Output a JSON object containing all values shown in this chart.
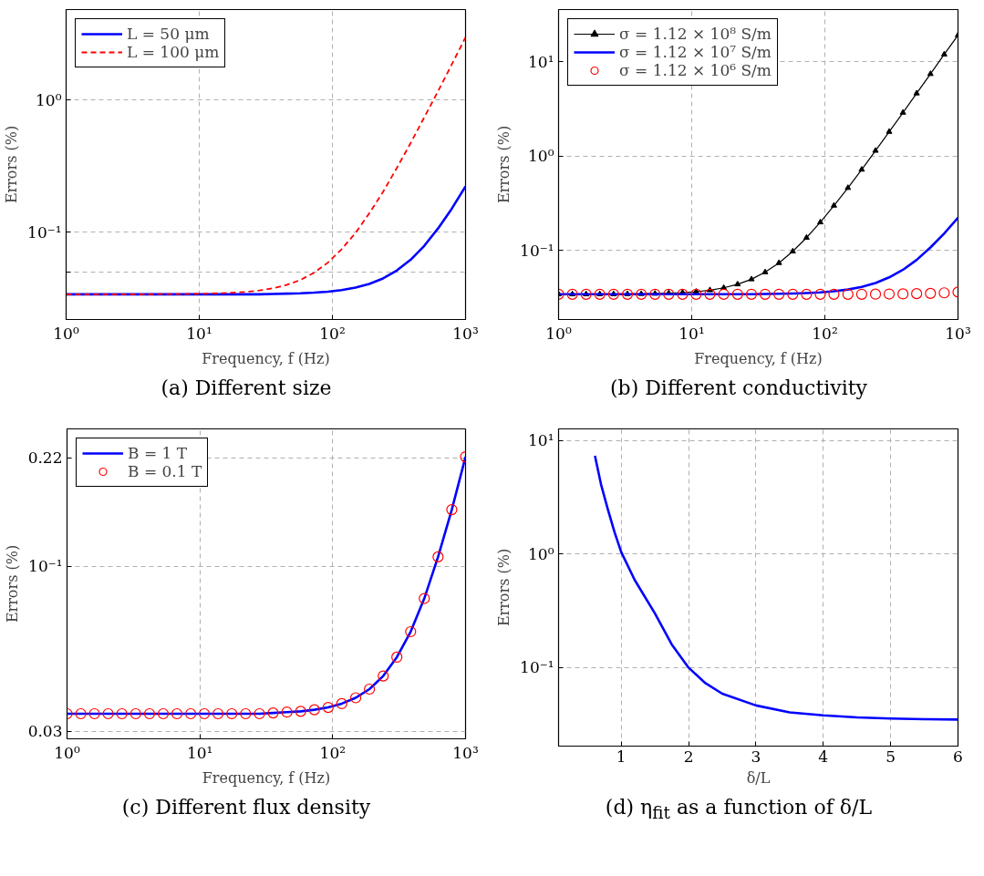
{
  "chart_data": [
    {
      "type": "line",
      "annotations": [
        "(a) Different size"
      ],
      "xlabel": "Frequency, f (Hz)",
      "ylabel": "Errors (%)",
      "log": "xy",
      "grid": true,
      "legend": "top left",
      "xlim": [
        1,
        1000
      ],
      "xticks": [
        {
          "value": 1,
          "label": "10⁰"
        },
        {
          "value": 10,
          "label": "10¹"
        },
        {
          "value": 100,
          "label": "10²"
        },
        {
          "value": 1000,
          "label": "10³"
        }
      ],
      "ylim": [
        0.022,
        4.8
      ],
      "yticks": [
        {
          "value": 0.05,
          "label": null
        },
        {
          "value": 0.1,
          "label": "10⁻¹"
        },
        {
          "value": 1,
          "label": "10⁰"
        }
      ],
      "x": [
        1,
        1.27,
        1.61,
        2.04,
        2.59,
        3.29,
        4.18,
        5.3,
        6.72,
        8.53,
        10.8,
        13.7,
        17.4,
        22.1,
        28.1,
        35.6,
        45.2,
        57.4,
        72.8,
        92.4,
        117,
        149,
        189,
        240,
        304,
        386,
        489,
        621,
        788,
        1000
      ],
      "series": [
        {
          "name": "L = 50 μm",
          "color": "#0000ff",
          "line_style": "solid",
          "values": [
            0.0341,
            0.0341,
            0.0341,
            0.0341,
            0.0341,
            0.0341,
            0.0341,
            0.0341,
            0.0341,
            0.0341,
            0.0341,
            0.0341,
            0.0341,
            0.0341,
            0.0341,
            0.0343,
            0.0345,
            0.0347,
            0.0351,
            0.0357,
            0.0367,
            0.0383,
            0.0408,
            0.0449,
            0.0515,
            0.062,
            0.079,
            0.107,
            0.151,
            0.222
          ]
        },
        {
          "name": "L = 100 μm",
          "color": "#ff0000",
          "line_style": "dashed",
          "values": [
            0.0341,
            0.0341,
            0.0341,
            0.0341,
            0.0341,
            0.0341,
            0.0341,
            0.0342,
            0.0342,
            0.0343,
            0.0344,
            0.0347,
            0.035,
            0.0355,
            0.0364,
            0.0378,
            0.0401,
            0.0437,
            0.0496,
            0.0591,
            0.0744,
            0.0989,
            0.139,
            0.202,
            0.305,
            0.47,
            0.736,
            1.16,
            1.85,
            2.96
          ]
        }
      ]
    },
    {
      "type": "line",
      "annotations": [
        "(b) Different conductivity"
      ],
      "xlabel": "Frequency, f (Hz)",
      "ylabel": "Errors (%)",
      "log": "xy",
      "grid": true,
      "legend": "top left",
      "xlim": [
        1,
        1000
      ],
      "xticks": [
        {
          "value": 1,
          "label": "10⁰"
        },
        {
          "value": 10,
          "label": "10¹"
        },
        {
          "value": 100,
          "label": "10²"
        },
        {
          "value": 1000,
          "label": "10³"
        }
      ],
      "ylim": [
        0.0184,
        35.9
      ],
      "yticks": [
        {
          "value": 0.1,
          "label": "10⁻¹"
        },
        {
          "value": 1,
          "label": "10⁰"
        },
        {
          "value": 10,
          "label": "10¹"
        }
      ],
      "x": [
        1,
        1.27,
        1.61,
        2.04,
        2.59,
        3.29,
        4.18,
        5.3,
        6.72,
        8.53,
        10.8,
        13.7,
        17.4,
        22.1,
        28.1,
        35.6,
        45.2,
        57.4,
        72.8,
        92.4,
        117,
        149,
        189,
        240,
        304,
        386,
        489,
        621,
        788,
        1000
      ],
      "series": [
        {
          "name": "σ = 1.12 × 10⁸ S/m",
          "color": "#000000",
          "line_style": "solid",
          "marker": "triangle",
          "values": [
            0.0341,
            0.0341,
            0.0341,
            0.0342,
            0.0342,
            0.0343,
            0.0344,
            0.0346,
            0.035,
            0.0355,
            0.0363,
            0.0377,
            0.0399,
            0.0435,
            0.0492,
            0.0585,
            0.0733,
            0.0973,
            0.136,
            0.198,
            0.298,
            0.459,
            0.718,
            1.14,
            1.81,
            2.89,
            4.63,
            7.44,
            12.0,
            19.2
          ]
        },
        {
          "name": "σ = 1.12 × 10⁷ S/m",
          "color": "#0000ff",
          "line_style": "solid",
          "values": [
            0.0341,
            0.0341,
            0.0341,
            0.0341,
            0.0341,
            0.0341,
            0.0341,
            0.0341,
            0.0341,
            0.0341,
            0.0341,
            0.0341,
            0.0341,
            0.0341,
            0.0341,
            0.0343,
            0.0345,
            0.0347,
            0.0351,
            0.0357,
            0.0367,
            0.0383,
            0.0408,
            0.0449,
            0.0515,
            0.062,
            0.079,
            0.107,
            0.151,
            0.222
          ]
        },
        {
          "name": "σ = 1.12 × 10⁶ S/m",
          "color": "#ff0000",
          "type": "scatter",
          "marker": "circle",
          "values": [
            0.0341,
            0.0341,
            0.0341,
            0.0341,
            0.0341,
            0.0341,
            0.0341,
            0.0341,
            0.0341,
            0.0341,
            0.0341,
            0.0341,
            0.0341,
            0.0341,
            0.0341,
            0.0341,
            0.0341,
            0.0341,
            0.0341,
            0.0341,
            0.0341,
            0.0341,
            0.0341,
            0.0342,
            0.0343,
            0.0344,
            0.0346,
            0.0348,
            0.0353,
            0.036
          ]
        }
      ]
    },
    {
      "type": "line",
      "annotations": [
        "(c) Different flux density"
      ],
      "xlabel": "Frequency, f (Hz)",
      "ylabel": "Errors (%)",
      "log": "xy",
      "grid": true,
      "legend": "top left",
      "xlim": [
        1,
        1000
      ],
      "xticks": [
        {
          "value": 1,
          "label": "10⁰"
        },
        {
          "value": 10,
          "label": "10¹"
        },
        {
          "value": 100,
          "label": "10²"
        },
        {
          "value": 1000,
          "label": "10³"
        }
      ],
      "ylim": [
        0.0284,
        0.272
      ],
      "yticks": [
        0.03,
        {
          "value": 0.1,
          "label": "10⁻¹"
        },
        0.22
      ],
      "x": [
        1,
        1.27,
        1.61,
        2.04,
        2.59,
        3.29,
        4.18,
        5.3,
        6.72,
        8.53,
        10.8,
        13.7,
        17.4,
        22.1,
        28.1,
        35.6,
        45.2,
        57.4,
        72.8,
        92.4,
        117,
        149,
        189,
        240,
        304,
        386,
        489,
        621,
        788,
        1000
      ],
      "series": [
        {
          "name": "B = 1 T",
          "color": "#0000ff",
          "line_style": "solid",
          "values": [
            0.0341,
            0.0341,
            0.0341,
            0.0341,
            0.0341,
            0.0341,
            0.0341,
            0.0341,
            0.0341,
            0.0341,
            0.0341,
            0.0341,
            0.0341,
            0.0341,
            0.0341,
            0.0343,
            0.0345,
            0.0347,
            0.0351,
            0.0357,
            0.0367,
            0.0383,
            0.0408,
            0.0449,
            0.0515,
            0.062,
            0.079,
            0.107,
            0.151,
            0.222
          ]
        },
        {
          "name": "B = 0.1 T",
          "color": "#ff0000",
          "type": "scatter",
          "marker": "circle",
          "values": [
            0.0341,
            0.0341,
            0.0341,
            0.0341,
            0.0341,
            0.0341,
            0.0341,
            0.0341,
            0.0341,
            0.0341,
            0.0341,
            0.0341,
            0.0341,
            0.0341,
            0.0341,
            0.0343,
            0.0345,
            0.0347,
            0.0351,
            0.0357,
            0.0367,
            0.0383,
            0.0408,
            0.0449,
            0.0515,
            0.062,
            0.079,
            0.107,
            0.151,
            0.222
          ]
        }
      ]
    },
    {
      "type": "line",
      "annotations": [
        "(d) η$_{fit}$ as a function of δ/L"
      ],
      "xlabel": "δ/L",
      "ylabel": "Errors (%)",
      "log": "y",
      "grid": true,
      "xlim": [
        0.07,
        6
      ],
      "xticks": [
        1,
        2,
        3,
        4,
        5,
        6
      ],
      "ylim": [
        0.0204,
        12.6
      ],
      "yticks": [
        {
          "value": 0.1,
          "label": "10⁻¹"
        },
        {
          "value": 1,
          "label": "10⁰"
        },
        {
          "value": 10,
          "label": "10¹"
        }
      ],
      "x": [
        0.61,
        0.7,
        0.8,
        0.9,
        1,
        1.2,
        1.5,
        1.75,
        2,
        2.25,
        2.5,
        3,
        3.5,
        4,
        4.5,
        5,
        5.5,
        6
      ],
      "series": [
        {
          "color": "#0000ff",
          "line_style": "solid",
          "values": [
            7.3,
            4.1,
            2.49,
            1.56,
            1.04,
            0.59,
            0.3,
            0.16,
            0.1,
            0.073,
            0.059,
            0.0465,
            0.0404,
            0.038,
            0.0365,
            0.0357,
            0.0352,
            0.0349
          ]
        }
      ]
    }
  ]
}
